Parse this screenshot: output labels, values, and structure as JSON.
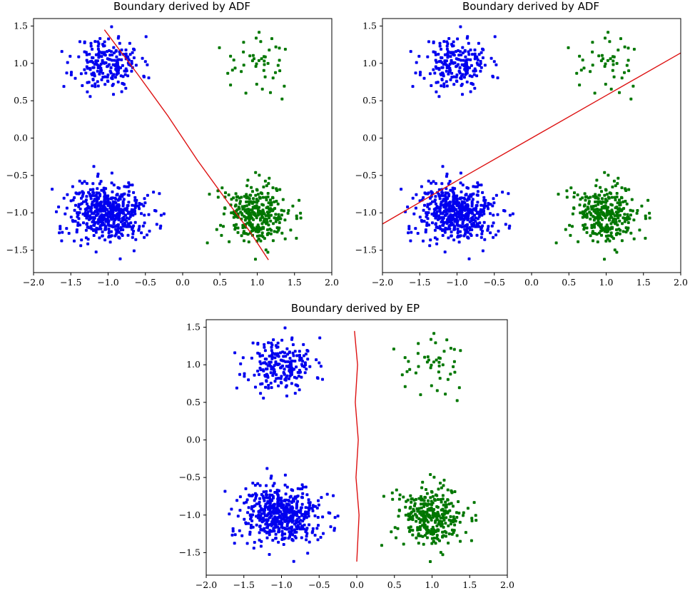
{
  "colors": {
    "class_a": "#0000ee",
    "class_b": "#007700",
    "boundary": "#dd1111"
  },
  "chart_data": [
    {
      "type": "scatter",
      "title": "Boundary derived by ADF",
      "xlim": [
        -2.0,
        2.0
      ],
      "ylim": [
        -1.8,
        1.6
      ],
      "xticks": [
        -2.0,
        -1.5,
        -1.0,
        -0.5,
        0.0,
        0.5,
        1.0,
        1.5,
        2.0
      ],
      "yticks": [
        -1.5,
        -1.0,
        -0.5,
        0.0,
        0.5,
        1.0,
        1.5
      ],
      "xticklabels": [
        "−2.0",
        "−1.5",
        "−1.0",
        "−0.5",
        "0.0",
        "0.5",
        "1.0",
        "1.5",
        "2.0"
      ],
      "yticklabels": [
        "−1.5",
        "−1.0",
        "−0.5",
        "0.0",
        "0.5",
        "1.0",
        "1.5"
      ],
      "clusters": [
        {
          "name": "blue-upper-left",
          "color": "#0000ee",
          "center": [
            -1.0,
            1.0
          ],
          "spread": [
            0.22,
            0.18
          ],
          "count": 220,
          "seed": 11
        },
        {
          "name": "blue-lower-left",
          "color": "#0000ee",
          "center": [
            -1.0,
            -1.0
          ],
          "spread": [
            0.25,
            0.2
          ],
          "count": 520,
          "seed": 12
        },
        {
          "name": "green-upper-right",
          "color": "#007700",
          "center": [
            1.0,
            1.0
          ],
          "spread": [
            0.22,
            0.2
          ],
          "count": 45,
          "seed": 13
        },
        {
          "name": "green-lower-right",
          "color": "#007700",
          "center": [
            1.0,
            -1.0
          ],
          "spread": [
            0.22,
            0.2
          ],
          "count": 320,
          "seed": 14
        }
      ],
      "boundary": {
        "x": [
          -1.05,
          -0.6,
          -0.2,
          0.2,
          0.6,
          0.9,
          1.15
        ],
        "y": [
          1.45,
          0.85,
          0.3,
          -0.3,
          -0.85,
          -1.25,
          -1.63
        ]
      }
    },
    {
      "type": "scatter",
      "title": "Boundary derived by ADF",
      "xlim": [
        -2.0,
        2.0
      ],
      "ylim": [
        -1.8,
        1.6
      ],
      "xticks": [
        -2.0,
        -1.5,
        -1.0,
        -0.5,
        0.0,
        0.5,
        1.0,
        1.5,
        2.0
      ],
      "yticks": [
        -1.5,
        -1.0,
        -0.5,
        0.0,
        0.5,
        1.0,
        1.5
      ],
      "xticklabels": [
        "−2.0",
        "−1.5",
        "−1.0",
        "−0.5",
        "0.0",
        "0.5",
        "1.0",
        "1.5",
        "2.0"
      ],
      "yticklabels": [
        "−1.5",
        "−1.0",
        "−0.5",
        "0.0",
        "0.5",
        "1.0",
        "1.5"
      ],
      "clusters": [
        {
          "name": "blue-upper-left",
          "color": "#0000ee",
          "center": [
            -1.0,
            1.0
          ],
          "spread": [
            0.22,
            0.18
          ],
          "count": 220,
          "seed": 11
        },
        {
          "name": "blue-lower-left",
          "color": "#0000ee",
          "center": [
            -1.0,
            -1.0
          ],
          "spread": [
            0.25,
            0.2
          ],
          "count": 520,
          "seed": 12
        },
        {
          "name": "green-upper-right",
          "color": "#007700",
          "center": [
            1.0,
            1.0
          ],
          "spread": [
            0.22,
            0.2
          ],
          "count": 45,
          "seed": 13
        },
        {
          "name": "green-lower-right",
          "color": "#007700",
          "center": [
            1.0,
            -1.0
          ],
          "spread": [
            0.22,
            0.2
          ],
          "count": 320,
          "seed": 14
        }
      ],
      "boundary": {
        "x": [
          -2.0,
          -1.0,
          0.0,
          1.0,
          2.0
        ],
        "y": [
          -1.15,
          -0.57,
          0.0,
          0.57,
          1.14
        ]
      }
    },
    {
      "type": "scatter",
      "title": "Boundary derived by EP",
      "xlim": [
        -2.0,
        2.0
      ],
      "ylim": [
        -1.8,
        1.6
      ],
      "xticks": [
        -2.0,
        -1.5,
        -1.0,
        -0.5,
        0.0,
        0.5,
        1.0,
        1.5,
        2.0
      ],
      "yticks": [
        -1.5,
        -1.0,
        -0.5,
        0.0,
        0.5,
        1.0,
        1.5
      ],
      "xticklabels": [
        "−2.0",
        "−1.5",
        "−1.0",
        "−0.5",
        "0.0",
        "0.5",
        "1.0",
        "1.5",
        "2.0"
      ],
      "yticklabels": [
        "−1.5",
        "−1.0",
        "−0.5",
        "0.0",
        "0.5",
        "1.0",
        "1.5"
      ],
      "clusters": [
        {
          "name": "blue-upper-left",
          "color": "#0000ee",
          "center": [
            -1.0,
            1.0
          ],
          "spread": [
            0.22,
            0.18
          ],
          "count": 220,
          "seed": 11
        },
        {
          "name": "blue-lower-left",
          "color": "#0000ee",
          "center": [
            -1.0,
            -1.0
          ],
          "spread": [
            0.25,
            0.2
          ],
          "count": 520,
          "seed": 12
        },
        {
          "name": "green-upper-right",
          "color": "#007700",
          "center": [
            1.0,
            1.0
          ],
          "spread": [
            0.22,
            0.2
          ],
          "count": 45,
          "seed": 13
        },
        {
          "name": "green-lower-right",
          "color": "#007700",
          "center": [
            1.0,
            -1.0
          ],
          "spread": [
            0.22,
            0.2
          ],
          "count": 320,
          "seed": 14
        }
      ],
      "boundary": {
        "x": [
          -0.03,
          0.01,
          -0.02,
          0.02,
          -0.01,
          0.03,
          0.0
        ],
        "y": [
          1.45,
          1.0,
          0.5,
          0.0,
          -0.5,
          -1.0,
          -1.62
        ]
      }
    }
  ]
}
